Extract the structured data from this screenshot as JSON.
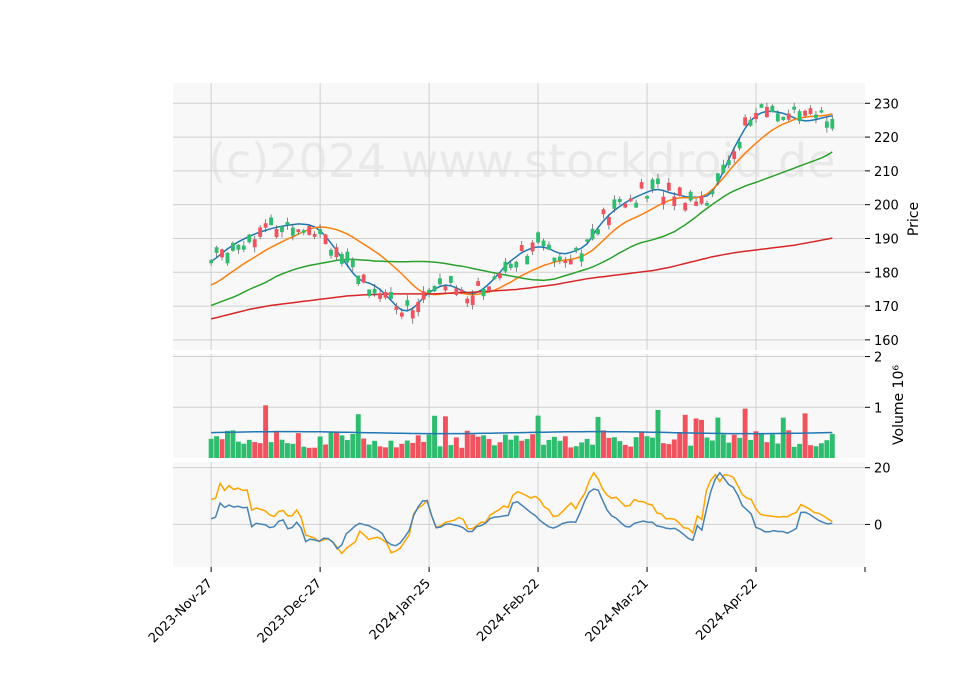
{
  "watermark": "(c)2024 www.stockdroid.de",
  "chart_data": {
    "type": "candlestick",
    "panels": [
      {
        "name": "price",
        "ylabel": "Price",
        "ylim": [
          157,
          236
        ],
        "yticks": [
          160,
          170,
          180,
          190,
          200,
          210,
          220,
          230
        ]
      },
      {
        "name": "volume",
        "ylabel": "Volume  10⁶",
        "ylim": [
          0,
          2.05
        ],
        "yticks": [
          1,
          2
        ],
        "ytick_labels": [
          "1",
          "2"
        ]
      },
      {
        "name": "indicator",
        "ylim": [
          -15,
          22
        ],
        "yticks": [
          0,
          20
        ],
        "ytick_labels": [
          "0",
          "20"
        ]
      }
    ],
    "xtick_labels": [
      "2023-Nov-27",
      "2023-Dec-27",
      "2024-Jan-25",
      "2024-Feb-22",
      "2024-Mar-21",
      "2024-Apr-22"
    ],
    "xtick_index": [
      0,
      20,
      40,
      60,
      80,
      100
    ],
    "x_range": [
      -7,
      120
    ],
    "candle_colors": {
      "up": "#2ebd6e",
      "down": "#f0525e"
    },
    "ma_series": [
      {
        "color": "#1f77b4",
        "values": [
          183.2,
          184.3,
          185.6,
          186.9,
          188.0,
          189.0,
          189.8,
          190.6,
          191.3,
          191.9,
          192.4,
          192.9,
          193.3,
          193.6,
          193.9,
          194.1,
          194.3,
          194.2,
          194.0,
          193.4,
          192.3,
          190.6,
          188.6,
          186.4,
          184.2,
          182.0,
          179.8,
          178.1,
          177.2,
          176.8,
          176.0,
          174.9,
          173.4,
          171.7,
          170.0,
          168.8,
          168.6,
          169.3,
          170.8,
          172.6,
          174.0,
          175.0,
          175.8,
          176.2,
          176.0,
          175.4,
          174.6,
          173.9,
          173.7,
          174.2,
          175.2,
          176.6,
          178.2,
          180.0,
          181.9,
          183.4,
          184.6,
          185.8,
          186.6,
          187.2,
          187.5,
          187.4,
          187.0,
          186.2,
          185.6,
          185.5,
          185.9,
          186.4,
          187.2,
          188.4,
          190.8,
          193.2,
          195.2,
          196.9,
          198.3,
          199.5,
          200.6,
          201.5,
          202.3,
          203.0,
          203.7,
          204.3,
          204.5,
          204.2,
          203.6,
          203.2,
          202.8,
          202.4,
          202.2,
          202.2,
          202.3,
          202.6,
          204.0,
          206.5,
          209.8,
          213.4,
          216.8,
          219.8,
          222.6,
          224.8,
          226.3,
          227.2,
          227.6,
          227.6,
          227.4,
          227.0,
          226.4,
          225.7,
          225.1,
          224.8,
          224.9,
          225.2,
          225.6,
          226.0,
          226.3
        ]
      },
      {
        "color": "#ff7f0e",
        "values": [
          176.2,
          177.0,
          178.0,
          179.2,
          180.3,
          181.4,
          182.5,
          183.5,
          184.5,
          185.5,
          186.5,
          187.4,
          188.2,
          189.0,
          189.8,
          190.5,
          191.3,
          192.0,
          192.7,
          193.2,
          193.4,
          193.3,
          193.0,
          192.6,
          192.0,
          191.3,
          190.4,
          189.3,
          188.3,
          187.3,
          186.2,
          185.1,
          183.8,
          182.4,
          181.0,
          179.5,
          177.9,
          176.3,
          174.9,
          174.0,
          173.6,
          173.4,
          173.5,
          173.7,
          173.9,
          174.0,
          173.8,
          173.5,
          173.4,
          173.5,
          173.8,
          174.2,
          174.7,
          175.4,
          176.3,
          177.1,
          178.1,
          179.0,
          179.8,
          180.6,
          181.3,
          182.0,
          182.5,
          183.0,
          183.4,
          183.6,
          183.8,
          184.2,
          184.7,
          185.5,
          186.5,
          188.0,
          189.5,
          191.0,
          192.5,
          193.7,
          194.8,
          195.6,
          196.3,
          197.1,
          197.9,
          198.8,
          199.7,
          200.5,
          201.2,
          201.7,
          202.0,
          202.1,
          202.0,
          202.0,
          202.4,
          203.2,
          204.5,
          206.1,
          207.9,
          209.9,
          211.8,
          213.5,
          215.2,
          216.7,
          218.2,
          219.6,
          220.9,
          222.1,
          223.0,
          223.9,
          224.5,
          225.2,
          225.6,
          225.9,
          226.1,
          226.2,
          226.3,
          226.5,
          226.9
        ]
      },
      {
        "color": "#2ca02c",
        "values": [
          170.2,
          170.8,
          171.4,
          172.0,
          172.6,
          173.3,
          174.1,
          174.9,
          175.6,
          176.3,
          177.0,
          177.9,
          178.8,
          179.5,
          180.1,
          180.7,
          181.2,
          181.6,
          182.0,
          182.3,
          182.6,
          182.9,
          183.2,
          183.5,
          183.7,
          183.8,
          183.8,
          183.7,
          183.6,
          183.5,
          183.3,
          183.3,
          183.2,
          183.2,
          183.1,
          183.1,
          183.1,
          183.2,
          183.2,
          183.2,
          183.1,
          183.0,
          182.8,
          182.6,
          182.3,
          182.0,
          181.8,
          181.5,
          181.1,
          180.8,
          180.5,
          180.1,
          179.8,
          179.5,
          179.2,
          178.9,
          178.6,
          178.3,
          178.0,
          177.8,
          177.7,
          177.6,
          177.8,
          178.0,
          178.5,
          179.0,
          179.5,
          180.0,
          180.5,
          181.0,
          181.6,
          182.3,
          183.1,
          183.9,
          184.8,
          185.8,
          186.6,
          187.5,
          188.2,
          188.8,
          189.2,
          189.6,
          190.1,
          190.6,
          191.3,
          192.0,
          193.0,
          194.0,
          195.2,
          196.4,
          197.7,
          198.9,
          200.1,
          201.2,
          202.3,
          203.3,
          204.1,
          204.8,
          205.5,
          206.1,
          206.6,
          207.2,
          207.8,
          208.4,
          209.0,
          209.6,
          210.2,
          210.8,
          211.4,
          212.0,
          212.6,
          213.2,
          213.8,
          214.6,
          215.6
        ]
      },
      {
        "color": "#d62728",
        "values": [
          166.2,
          166.6,
          167.0,
          167.4,
          167.8,
          168.2,
          168.6,
          169.0,
          169.3,
          169.6,
          169.9,
          170.2,
          170.4,
          170.6,
          170.8,
          171.0,
          171.2,
          171.4,
          171.6,
          171.8,
          172.0,
          172.2,
          172.4,
          172.6,
          172.8,
          173.0,
          173.1,
          173.2,
          173.3,
          173.4,
          173.4,
          173.5,
          173.5,
          173.6,
          173.6,
          173.6,
          173.6,
          173.6,
          173.6,
          173.6,
          173.6,
          173.6,
          173.7,
          173.8,
          173.8,
          173.9,
          174.0,
          174.0,
          174.1,
          174.2,
          174.3,
          174.4,
          174.5,
          174.6,
          174.7,
          174.8,
          174.9,
          175.1,
          175.3,
          175.5,
          175.7,
          175.9,
          176.1,
          176.3,
          176.6,
          176.9,
          177.2,
          177.5,
          177.8,
          178.1,
          178.3,
          178.5,
          178.7,
          178.9,
          179.1,
          179.3,
          179.5,
          179.7,
          179.9,
          180.1,
          180.3,
          180.5,
          180.8,
          181.1,
          181.4,
          181.8,
          182.2,
          182.6,
          183.0,
          183.4,
          183.8,
          184.2,
          184.6,
          184.9,
          185.2,
          185.5,
          185.8,
          186.0,
          186.2,
          186.4,
          186.6,
          186.8,
          187.0,
          187.2,
          187.4,
          187.6,
          187.8,
          188.0,
          188.3,
          188.6,
          188.9,
          189.2,
          189.5,
          189.8,
          190.1
        ]
      }
    ],
    "volume_ma": {
      "color": "#1f77b4"
    },
    "indicator_series": [
      {
        "color": "#ffa500",
        "values": [
          8.8,
          9.2,
          14.5,
          12.0,
          13.7,
          12.3,
          12.8,
          12.0,
          12.1,
          5.0,
          5.8,
          5.3,
          4.8,
          3.4,
          2.8,
          4.6,
          4.9,
          3.0,
          3.1,
          5.1,
          2.4,
          -3.8,
          -4.2,
          -4.9,
          -6.0,
          -5.4,
          -5.1,
          -6.1,
          -8.1,
          -10.2,
          -8.5,
          -7.3,
          -6.2,
          -2.4,
          -3.7,
          -5.3,
          -4.8,
          -4.5,
          -5.3,
          -6.5,
          -10.0,
          -9.4,
          -8.4,
          -6.0,
          -3.7,
          3.8,
          5.8,
          6.8,
          8.5,
          3.0,
          -1.0,
          -0.5,
          0.7,
          1.1,
          1.5,
          2.4,
          1.8,
          -1.5,
          -1.5,
          -0.4,
          0.8,
          0.8,
          3.3,
          4.3,
          5.2,
          6.5,
          6.0,
          10.2,
          11.5,
          11.0,
          10.2,
          9.3,
          9.9,
          8.7,
          6.2,
          5.3,
          2.8,
          3.0,
          4.4,
          6.1,
          7.6,
          5.5,
          8.5,
          10.9,
          15.3,
          18.2,
          16.0,
          12.4,
          10.3,
          9.2,
          9.6,
          7.9,
          6.4,
          6.7,
          8.8,
          8.1,
          8.0,
          7.2,
          6.8,
          4.1,
          3.7,
          2.0,
          2.1,
          1.8,
          0.5,
          -1.2,
          -1.4,
          -3.0,
          3.0,
          1.7,
          11.9,
          15.6,
          17.5,
          15.1,
          17.5,
          17.3,
          16.6,
          13.7,
          10.5,
          9.3,
          8.8,
          5.5,
          3.6,
          3.2,
          3.0,
          2.8,
          2.6,
          2.8,
          2.7,
          3.6,
          4.2,
          7.0,
          6.2,
          5.4,
          4.2,
          3.9,
          3.0,
          2.0,
          1.0
        ]
      },
      {
        "color": "#4682b4",
        "values": [
          2.0,
          2.6,
          7.5,
          6.0,
          6.8,
          6.1,
          6.4,
          5.9,
          6.0,
          -0.8,
          0.4,
          0.1,
          -0.1,
          -1.1,
          -0.8,
          1.1,
          1.6,
          -1.5,
          -1.1,
          0.8,
          -1.3,
          -6.0,
          -5.2,
          -5.5,
          -5.9,
          -4.9,
          -5.0,
          -6.2,
          -8.6,
          -7.3,
          -3.3,
          -2.0,
          -0.5,
          0.4,
          -0.1,
          -0.4,
          -1.3,
          -2.0,
          -3.2,
          -6.0,
          -7.1,
          -7.5,
          -6.5,
          -4.5,
          -2.1,
          3.2,
          6.2,
          8.3,
          8.3,
          3.0,
          -1.2,
          -0.9,
          0.0,
          0.2,
          -0.2,
          -0.5,
          -1.2,
          -2.5,
          -2.5,
          -0.8,
          -0.4,
          0.5,
          2.1,
          2.6,
          2.7,
          3.0,
          3.2,
          7.5,
          8.0,
          6.8,
          5.5,
          4.2,
          3.2,
          1.5,
          0.3,
          -0.8,
          -1.3,
          -0.7,
          0.3,
          0.7,
          0.9,
          0.8,
          4.2,
          8.2,
          11.4,
          12.5,
          12.1,
          8.4,
          5.0,
          3.0,
          2.2,
          0.6,
          -0.7,
          -0.9,
          0.4,
          0.8,
          1.2,
          0.8,
          0.8,
          -0.5,
          -0.8,
          -1.3,
          -1.5,
          -1.4,
          -2.3,
          -3.6,
          -4.9,
          -5.6,
          -0.4,
          -2.0,
          5.1,
          11.6,
          16.0,
          18.2,
          16.2,
          14.0,
          13.1,
          10.3,
          6.6,
          5.2,
          3.6,
          -1.0,
          -1.6,
          -2.6,
          -2.6,
          -2.2,
          -2.5,
          -2.5,
          -3.1,
          -2.3,
          -1.4,
          4.2,
          4.3,
          3.5,
          2.4,
          1.4,
          0.7,
          0.2,
          0.4
        ]
      }
    ]
  }
}
